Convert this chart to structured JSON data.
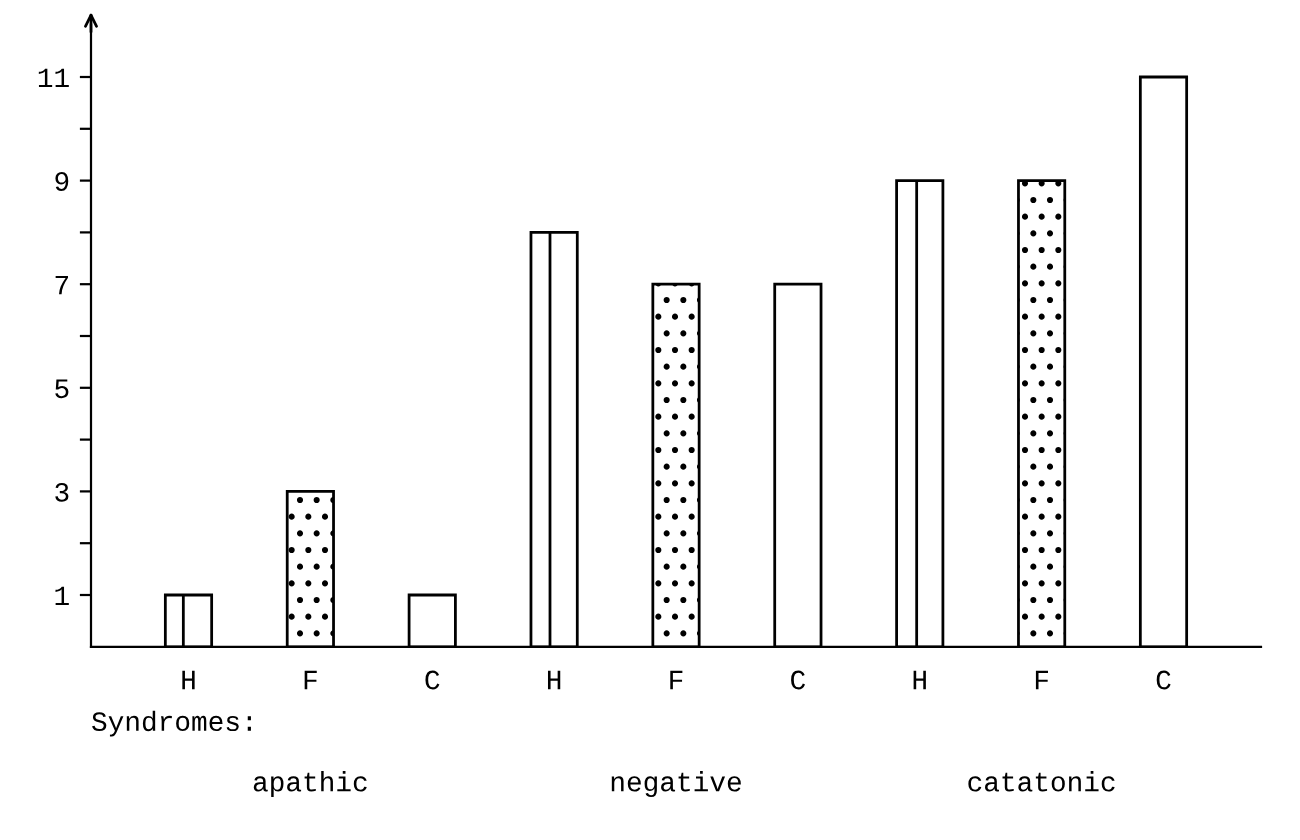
{
  "chart_data": {
    "type": "bar",
    "categories": [
      "H",
      "F",
      "C",
      "H",
      "F",
      "C",
      "H",
      "F",
      "C"
    ],
    "values": [
      1,
      3,
      1,
      8,
      7,
      7,
      9,
      9,
      11
    ],
    "colors": [
      "#ffffff",
      "#ffffff",
      "#ffffff",
      "#ffffff",
      "#ffffff",
      "#ffffff",
      "#ffffff",
      "#ffffff",
      "#ffffff"
    ],
    "ylim": [
      0,
      12
    ],
    "yticks": [
      1,
      {
        "value": 2,
        "label": null
      },
      3,
      {
        "value": 4,
        "label": null
      },
      5,
      {
        "value": 6,
        "label": null
      },
      7,
      {
        "value": 8,
        "label": null
      },
      9,
      {
        "value": 10,
        "label": null
      },
      11
    ],
    "grid": false,
    "annotations": [
      "Syndromes:",
      "apathic",
      "negative",
      "catatonic"
    ]
  }
}
